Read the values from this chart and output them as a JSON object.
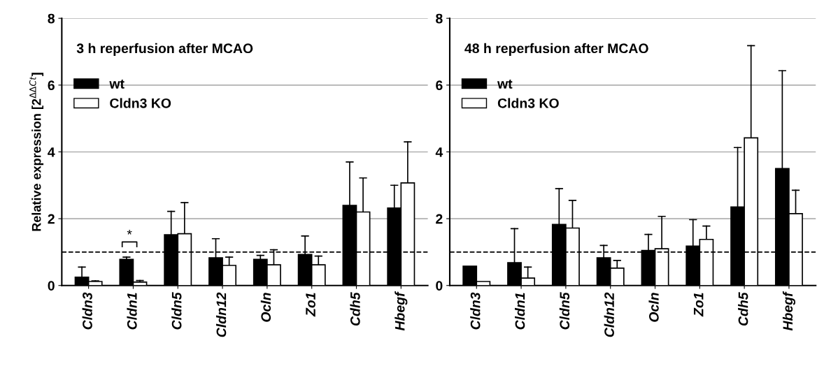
{
  "chart_data": [
    {
      "type": "bar",
      "title": "3 h reperfusion after MCAO",
      "ylabel": "Relative expression [2$^{ΔΔCt}$]",
      "categories": [
        "Cldn3",
        "Cldn1",
        "Cldn5",
        "Cldn12",
        "Ocln",
        "Zo1",
        "Cdh5",
        "Hbegf"
      ],
      "series": [
        {
          "name": "wt",
          "color": "#000000",
          "values": [
            0.25,
            0.78,
            1.52,
            0.83,
            0.78,
            0.93,
            2.4,
            2.32
          ],
          "errors": [
            [
              0.25,
              0.55
            ],
            [
              0.78,
              0.85
            ],
            [
              1.52,
              2.22
            ],
            [
              0.83,
              1.4
            ],
            [
              0.78,
              0.9
            ],
            [
              0.93,
              1.48
            ],
            [
              2.4,
              3.7
            ],
            [
              2.32,
              3.0
            ]
          ]
        },
        {
          "name": "Cldn3 KO",
          "color": "#ffffff",
          "values": [
            0.12,
            0.1,
            1.55,
            0.6,
            0.62,
            0.62,
            2.2,
            3.07
          ],
          "errors": [
            [
              0.12,
              0.14
            ],
            [
              0.1,
              0.15
            ],
            [
              1.55,
              2.48
            ],
            [
              0.6,
              0.85
            ],
            [
              0.62,
              1.07
            ],
            [
              0.62,
              0.88
            ],
            [
              2.2,
              3.22
            ],
            [
              3.07,
              4.3
            ]
          ]
        }
      ],
      "ylim": [
        0,
        8
      ],
      "yticks": [
        0,
        2,
        4,
        6,
        8
      ],
      "grid": "y",
      "legend": "top left",
      "ref_lines": [
        {
          "axis": "y",
          "value": 1,
          "line_style": "dashed",
          "color": "#000000"
        }
      ],
      "annotations": [
        "*"
      ]
    },
    {
      "type": "bar",
      "title": "48 h reperfusion after MCAO",
      "categories": [
        "Cldn3",
        "Cldn1",
        "Cldn5",
        "Cldn12",
        "Ocln",
        "Zo1",
        "Cdh5",
        "Hbegf"
      ],
      "series": [
        {
          "name": "wt",
          "color": "#000000",
          "values": [
            0.58,
            0.68,
            1.83,
            0.83,
            1.05,
            1.18,
            2.35,
            3.5
          ],
          "errors": [
            null,
            [
              0.68,
              1.7
            ],
            [
              1.83,
              2.9
            ],
            [
              0.83,
              1.2
            ],
            [
              1.05,
              1.53
            ],
            [
              1.18,
              1.97
            ],
            [
              2.35,
              4.13
            ],
            [
              3.5,
              6.43
            ]
          ]
        },
        {
          "name": "Cldn3 KO",
          "color": "#ffffff",
          "values": [
            0.12,
            0.22,
            1.72,
            0.52,
            1.1,
            1.38,
            4.42,
            2.15
          ],
          "errors": [
            null,
            [
              0.22,
              0.55
            ],
            [
              1.72,
              2.55
            ],
            [
              0.52,
              0.75
            ],
            [
              1.1,
              2.07
            ],
            [
              1.38,
              1.78
            ],
            [
              4.42,
              7.18
            ],
            [
              2.15,
              2.85
            ]
          ]
        }
      ],
      "ylim": [
        0,
        8
      ],
      "yticks": [
        0,
        2,
        4,
        6,
        8
      ],
      "grid": "y",
      "legend": "top left",
      "ref_lines": [
        {
          "axis": "y",
          "value": 1,
          "line_style": "dashed",
          "color": "#000000"
        }
      ]
    }
  ]
}
